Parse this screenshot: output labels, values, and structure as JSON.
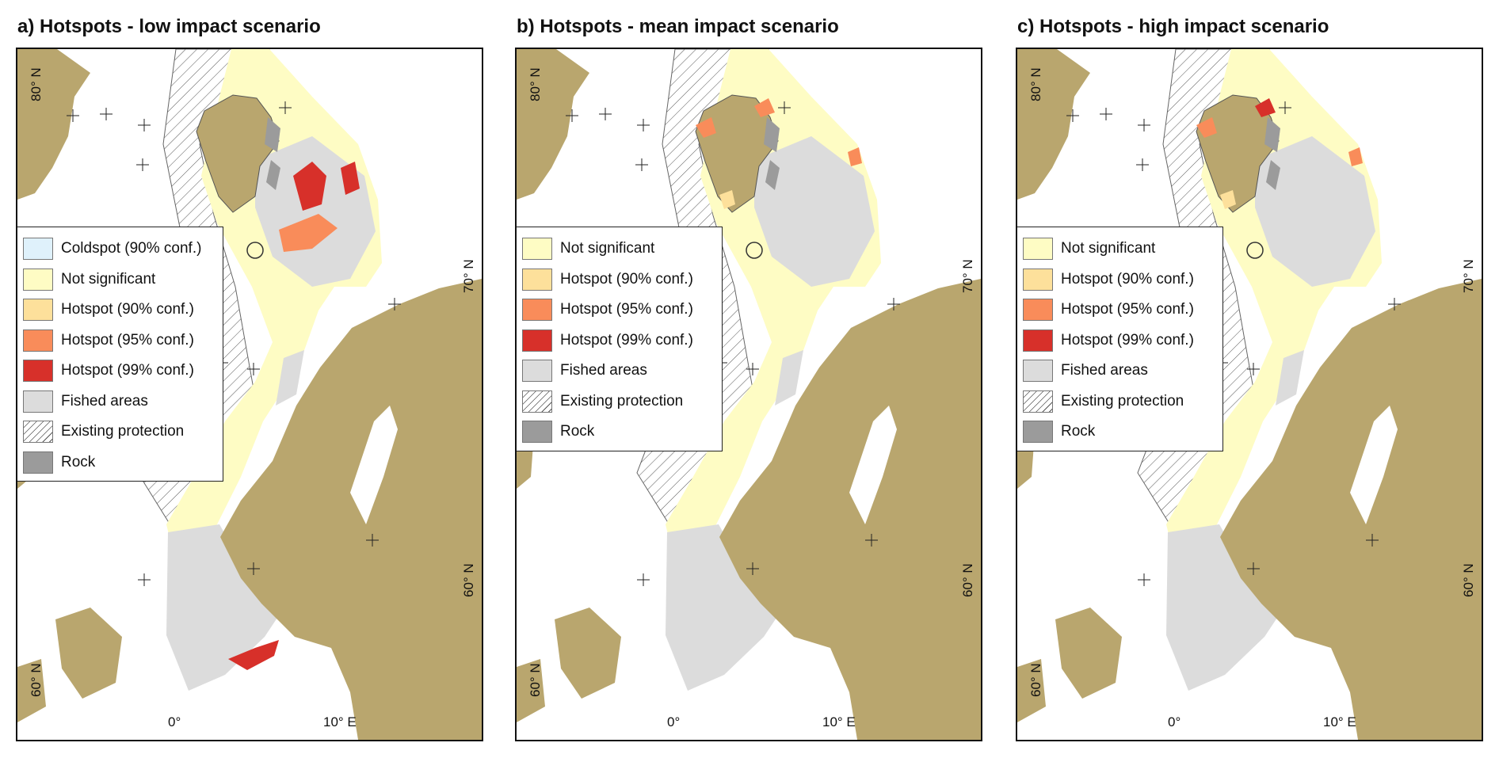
{
  "colors": {
    "land": "#b9a66e",
    "coldspot": "#dff1fb",
    "not_significant": "#fefcc4",
    "hotspot_90": "#fde09b",
    "hotspot_95": "#f98c5a",
    "hotspot_99": "#d7302a",
    "fished": "#dcdcdc",
    "rock": "#9b9b9b",
    "frame": "#111111"
  },
  "panels": [
    {
      "title": "a) Hotspots - low impact scenario",
      "legend": [
        {
          "label": "Coldspot (90% conf.)",
          "key": "coldspot"
        },
        {
          "label": "Not significant",
          "key": "not_significant"
        },
        {
          "label": "Hotspot (90% conf.)",
          "key": "hotspot_90"
        },
        {
          "label": "Hotspot (95% conf.)",
          "key": "hotspot_95"
        },
        {
          "label": "Hotspot (99% conf.)",
          "key": "hotspot_99"
        },
        {
          "label": "Fished areas",
          "key": "fished"
        },
        {
          "label": "Existing protection",
          "key": "protection"
        },
        {
          "label": "Rock",
          "key": "rock"
        }
      ],
      "ticks": {
        "lat_80": "80° N",
        "lat_70": "70° N",
        "lat_60_right": "60° N",
        "lat_60_left": "60° N",
        "lon_0": "0°",
        "lon_10": "10° E"
      }
    },
    {
      "title": "b) Hotspots - mean impact scenario",
      "legend": [
        {
          "label": "Not significant",
          "key": "not_significant"
        },
        {
          "label": "Hotspot (90% conf.)",
          "key": "hotspot_90"
        },
        {
          "label": "Hotspot (95% conf.)",
          "key": "hotspot_95"
        },
        {
          "label": "Hotspot (99% conf.)",
          "key": "hotspot_99"
        },
        {
          "label": "Fished areas",
          "key": "fished"
        },
        {
          "label": "Existing protection",
          "key": "protection"
        },
        {
          "label": "Rock",
          "key": "rock"
        }
      ],
      "ticks": {
        "lat_80": "80° N",
        "lat_70": "70° N",
        "lat_60_right": "60° N",
        "lat_60_left": "60° N",
        "lon_0": "0°",
        "lon_10": "10° E"
      }
    },
    {
      "title": "c) Hotspots - high impact scenario",
      "legend": [
        {
          "label": "Not significant",
          "key": "not_significant"
        },
        {
          "label": "Hotspot (90% conf.)",
          "key": "hotspot_90"
        },
        {
          "label": "Hotspot (95% conf.)",
          "key": "hotspot_95"
        },
        {
          "label": "Hotspot (99% conf.)",
          "key": "hotspot_99"
        },
        {
          "label": "Fished areas",
          "key": "fished"
        },
        {
          "label": "Existing protection",
          "key": "protection"
        },
        {
          "label": "Rock",
          "key": "rock"
        }
      ],
      "ticks": {
        "lat_80": "80° N",
        "lat_70": "70° N",
        "lat_60_right": "60° N",
        "lat_60_left": "60° N",
        "lon_0": "0°",
        "lon_10": "10° E"
      }
    }
  ]
}
